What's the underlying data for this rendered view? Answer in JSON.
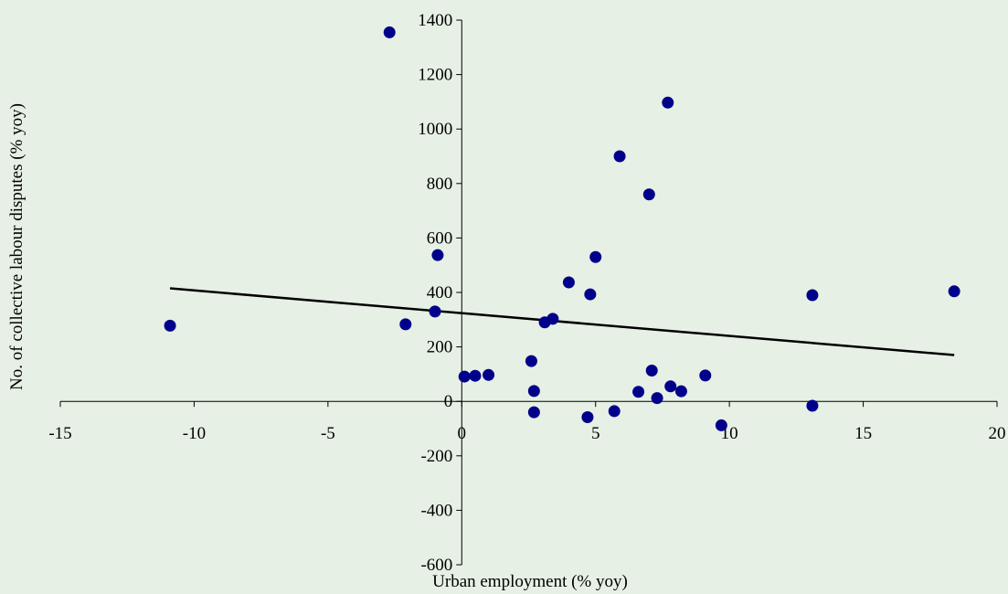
{
  "chart_data": {
    "type": "scatter",
    "title": "",
    "xlabel": "Urban employment (% yoy)",
    "ylabel": "No. of collective labour disputes (% yoy)",
    "xlim": [
      -15,
      20
    ],
    "ylim": [
      -600,
      1400
    ],
    "xticks": [
      -15,
      -10,
      -5,
      0,
      5,
      10,
      15,
      20
    ],
    "yticks": [
      -600,
      -400,
      -200,
      0,
      200,
      400,
      600,
      800,
      1000,
      1200,
      1400
    ],
    "grid": false,
    "legend": "none",
    "point_color": "#00008b",
    "trendline_color": "#000000",
    "points": [
      {
        "x": -10.9,
        "y": 278
      },
      {
        "x": -2.7,
        "y": 1355
      },
      {
        "x": -2.1,
        "y": 283
      },
      {
        "x": -0.9,
        "y": 537
      },
      {
        "x": -1.0,
        "y": 330
      },
      {
        "x": 0.1,
        "y": 91
      },
      {
        "x": 0.5,
        "y": 94
      },
      {
        "x": 1.0,
        "y": 97
      },
      {
        "x": 2.6,
        "y": 148
      },
      {
        "x": 2.7,
        "y": 38
      },
      {
        "x": 2.7,
        "y": -40
      },
      {
        "x": 3.1,
        "y": 290
      },
      {
        "x": 3.4,
        "y": 303
      },
      {
        "x": 4.0,
        "y": 437
      },
      {
        "x": 4.7,
        "y": -58
      },
      {
        "x": 4.8,
        "y": 393
      },
      {
        "x": 5.0,
        "y": 530
      },
      {
        "x": 5.7,
        "y": -36
      },
      {
        "x": 5.9,
        "y": 900
      },
      {
        "x": 6.6,
        "y": 35
      },
      {
        "x": 7.0,
        "y": 760
      },
      {
        "x": 7.1,
        "y": 113
      },
      {
        "x": 7.3,
        "y": 12
      },
      {
        "x": 7.7,
        "y": 1097
      },
      {
        "x": 7.8,
        "y": 55
      },
      {
        "x": 8.2,
        "y": 37
      },
      {
        "x": 9.1,
        "y": 95
      },
      {
        "x": 9.7,
        "y": -88
      },
      {
        "x": 13.1,
        "y": 390
      },
      {
        "x": 13.1,
        "y": -16
      },
      {
        "x": 18.4,
        "y": 404
      }
    ],
    "trendline": {
      "x": [
        -10.9,
        18.4
      ],
      "y": [
        415,
        170
      ]
    }
  }
}
